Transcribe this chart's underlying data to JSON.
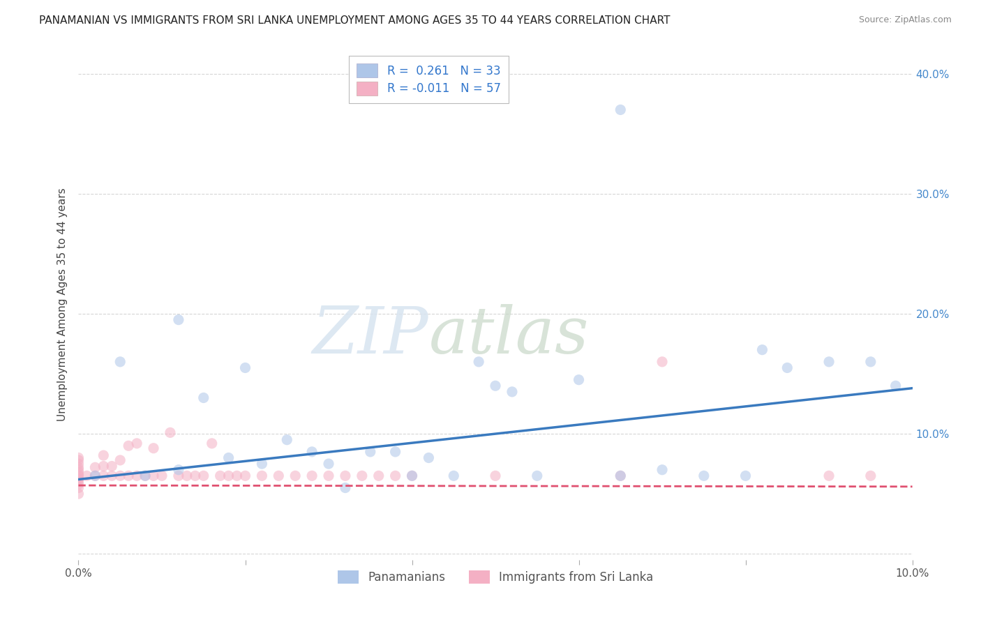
{
  "title": "PANAMANIAN VS IMMIGRANTS FROM SRI LANKA UNEMPLOYMENT AMONG AGES 35 TO 44 YEARS CORRELATION CHART",
  "source": "Source: ZipAtlas.com",
  "ylabel": "Unemployment Among Ages 35 to 44 years",
  "xlim": [
    0.0,
    0.1
  ],
  "ylim": [
    -0.005,
    0.42
  ],
  "x_ticks": [
    0.0,
    0.02,
    0.04,
    0.06,
    0.08,
    0.1
  ],
  "x_tick_labels": [
    "0.0%",
    "",
    "",
    "",
    "",
    "10.0%"
  ],
  "y_ticks": [
    0.0,
    0.1,
    0.2,
    0.3,
    0.4
  ],
  "y_tick_labels_right": [
    "",
    "10.0%",
    "20.0%",
    "30.0%",
    "40.0%"
  ],
  "legend_entries": [
    {
      "label": "Panamanians",
      "color": "#aec6e8",
      "R": "0.261",
      "N": "33"
    },
    {
      "label": "Immigrants from Sri Lanka",
      "color": "#f4b8c8",
      "R": "-0.011",
      "N": "57"
    }
  ],
  "blue_scatter_x": [
    0.002,
    0.005,
    0.008,
    0.012,
    0.012,
    0.015,
    0.018,
    0.02,
    0.022,
    0.025,
    0.028,
    0.03,
    0.032,
    0.035,
    0.038,
    0.04,
    0.042,
    0.045,
    0.048,
    0.05,
    0.052,
    0.055,
    0.06,
    0.065,
    0.065,
    0.07,
    0.075,
    0.08,
    0.082,
    0.085,
    0.09,
    0.095,
    0.098
  ],
  "blue_scatter_y": [
    0.065,
    0.16,
    0.065,
    0.07,
    0.195,
    0.13,
    0.08,
    0.155,
    0.075,
    0.095,
    0.085,
    0.075,
    0.055,
    0.085,
    0.085,
    0.065,
    0.08,
    0.065,
    0.16,
    0.14,
    0.135,
    0.065,
    0.145,
    0.37,
    0.065,
    0.07,
    0.065,
    0.065,
    0.17,
    0.155,
    0.16,
    0.16,
    0.14
  ],
  "pink_scatter_x": [
    0.0,
    0.0,
    0.0,
    0.0,
    0.0,
    0.0,
    0.0,
    0.0,
    0.0,
    0.0,
    0.0,
    0.0,
    0.0,
    0.0,
    0.001,
    0.002,
    0.002,
    0.003,
    0.003,
    0.003,
    0.004,
    0.004,
    0.005,
    0.005,
    0.006,
    0.006,
    0.007,
    0.007,
    0.008,
    0.009,
    0.009,
    0.01,
    0.011,
    0.012,
    0.013,
    0.014,
    0.015,
    0.016,
    0.017,
    0.018,
    0.019,
    0.02,
    0.022,
    0.024,
    0.026,
    0.028,
    0.03,
    0.032,
    0.034,
    0.036,
    0.038,
    0.04,
    0.05,
    0.065,
    0.07,
    0.09,
    0.095
  ],
  "pink_scatter_y": [
    0.05,
    0.055,
    0.058,
    0.06,
    0.062,
    0.063,
    0.065,
    0.066,
    0.068,
    0.07,
    0.072,
    0.075,
    0.078,
    0.08,
    0.065,
    0.065,
    0.072,
    0.065,
    0.073,
    0.082,
    0.065,
    0.073,
    0.065,
    0.078,
    0.065,
    0.09,
    0.065,
    0.092,
    0.065,
    0.065,
    0.088,
    0.065,
    0.101,
    0.065,
    0.065,
    0.065,
    0.065,
    0.092,
    0.065,
    0.065,
    0.065,
    0.065,
    0.065,
    0.065,
    0.065,
    0.065,
    0.065,
    0.065,
    0.065,
    0.065,
    0.065,
    0.065,
    0.065,
    0.065,
    0.16,
    0.065,
    0.065
  ],
  "blue_line_x": [
    0.0,
    0.1
  ],
  "blue_line_y": [
    0.062,
    0.138
  ],
  "pink_line_x": [
    0.0,
    0.1
  ],
  "pink_line_y": [
    0.057,
    0.056
  ],
  "watermark_zip": "ZIP",
  "watermark_atlas": "atlas",
  "title_fontsize": 11,
  "source_fontsize": 9,
  "axis_label_fontsize": 11,
  "tick_fontsize": 11,
  "legend_fontsize": 12,
  "scatter_alpha": 0.55,
  "scatter_size": 120,
  "blue_color": "#aec6e8",
  "pink_color": "#f4b0c4",
  "blue_line_color": "#3a7abf",
  "pink_line_color": "#e05070",
  "background_color": "#ffffff",
  "grid_color": "#cccccc",
  "grid_alpha": 0.8
}
